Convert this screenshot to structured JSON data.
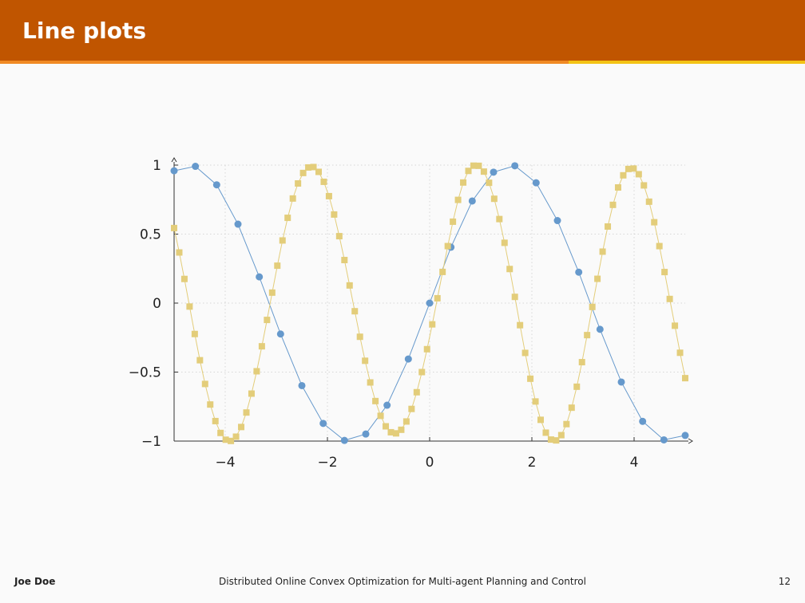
{
  "slide": {
    "title": "Line plots",
    "footer_author": "Joe Doe",
    "footer_title": "Distributed Online Convex Optimization for Multi-agent Planning and Control",
    "page_number": "12",
    "colors": {
      "title_bar": "#c05500",
      "accent_orange": "#f08a24",
      "accent_yellow": "#f3c316"
    }
  },
  "chart_data": {
    "type": "line",
    "title": "",
    "xlabel": "",
    "ylabel": "",
    "xlim": [
      -5,
      5
    ],
    "ylim": [
      -1,
      1
    ],
    "x_ticks": [
      -4,
      -2,
      0,
      2,
      4
    ],
    "x_tick_labels": [
      "−4",
      "−2",
      "0",
      "2",
      "4"
    ],
    "y_ticks": [
      -1,
      -0.5,
      0,
      0.5,
      1
    ],
    "y_tick_labels": [
      "−1",
      "−0.5",
      "0",
      "0.5",
      "1"
    ],
    "grid": true,
    "legend": "none",
    "series": [
      {
        "color": "#6699cc",
        "marker": "circle",
        "x": [
          -5,
          -4.583,
          -4.167,
          -3.75,
          -3.333,
          -2.917,
          -2.5,
          -2.083,
          -1.667,
          -1.25,
          -0.833,
          -0.417,
          0,
          0.417,
          0.833,
          1.25,
          1.667,
          2.083,
          2.5,
          2.917,
          3.333,
          3.75,
          4.167,
          4.583,
          5
        ],
        "y": [
          0.959,
          0.991,
          0.857,
          0.572,
          0.19,
          -0.224,
          -0.598,
          -0.872,
          -0.995,
          -0.949,
          -0.74,
          -0.405,
          0,
          0.405,
          0.74,
          0.949,
          0.995,
          0.872,
          0.598,
          0.224,
          -0.19,
          -0.572,
          -0.857,
          -0.991,
          -0.959
        ]
      },
      {
        "color": "#e3cd7a",
        "marker": "square",
        "x": [
          -5,
          -4.899,
          -4.798,
          -4.697,
          -4.596,
          -4.495,
          -4.394,
          -4.293,
          -4.192,
          -4.091,
          -3.99,
          -3.889,
          -3.788,
          -3.687,
          -3.586,
          -3.485,
          -3.384,
          -3.283,
          -3.182,
          -3.081,
          -2.98,
          -2.879,
          -2.778,
          -2.677,
          -2.576,
          -2.475,
          -2.374,
          -2.273,
          -2.172,
          -2.071,
          -1.97,
          -1.869,
          -1.768,
          -1.667,
          -1.566,
          -1.465,
          -1.364,
          -1.263,
          -1.162,
          -1.061,
          -0.96,
          -0.859,
          -0.758,
          -0.657,
          -0.556,
          -0.455,
          -0.354,
          -0.253,
          -0.152,
          -0.051,
          0.051,
          0.152,
          0.253,
          0.354,
          0.455,
          0.556,
          0.657,
          0.758,
          0.859,
          0.96,
          1.061,
          1.162,
          1.263,
          1.364,
          1.465,
          1.566,
          1.667,
          1.768,
          1.869,
          1.97,
          2.071,
          2.172,
          2.273,
          2.374,
          2.475,
          2.576,
          2.677,
          2.778,
          2.879,
          2.98,
          3.081,
          3.182,
          3.283,
          3.384,
          3.485,
          3.586,
          3.687,
          3.788,
          3.889,
          3.99,
          4.091,
          4.192,
          4.293,
          4.394,
          4.495,
          4.596,
          4.697,
          4.798,
          4.899,
          5
        ],
        "y": [
          0.544,
          0.367,
          0.175,
          -0.025,
          -0.224,
          -0.414,
          -0.586,
          -0.735,
          -0.855,
          -0.941,
          -0.99,
          -0.999,
          -0.968,
          -0.898,
          -0.793,
          -0.656,
          -0.494,
          -0.313,
          -0.122,
          0.076,
          0.271,
          0.454,
          0.618,
          0.758,
          0.867,
          0.943,
          0.983,
          0.986,
          0.951,
          0.879,
          0.775,
          0.642,
          0.485,
          0.312,
          0.128,
          -0.059,
          -0.244,
          -0.418,
          -0.575,
          -0.71,
          -0.817,
          -0.893,
          -0.936,
          -0.944,
          -0.918,
          -0.858,
          -0.767,
          -0.646,
          -0.5,
          -0.334,
          -0.154,
          0.035,
          0.226,
          0.413,
          0.59,
          0.748,
          0.874,
          0.958,
          0.996,
          0.995,
          0.953,
          0.872,
          0.756,
          0.609,
          0.437,
          0.247,
          0.045,
          -0.16,
          -0.361,
          -0.548,
          -0.713,
          -0.846,
          -0.939,
          -0.989,
          -0.995,
          -0.957,
          -0.877,
          -0.758,
          -0.606,
          -0.428,
          -0.232,
          -0.028,
          0.176,
          0.373,
          0.555,
          0.712,
          0.838,
          0.926,
          0.972,
          0.975,
          0.934,
          0.853,
          0.735,
          0.586,
          0.413,
          0.225,
          0.03,
          -0.164,
          -0.36,
          -0.544
        ]
      }
    ]
  }
}
